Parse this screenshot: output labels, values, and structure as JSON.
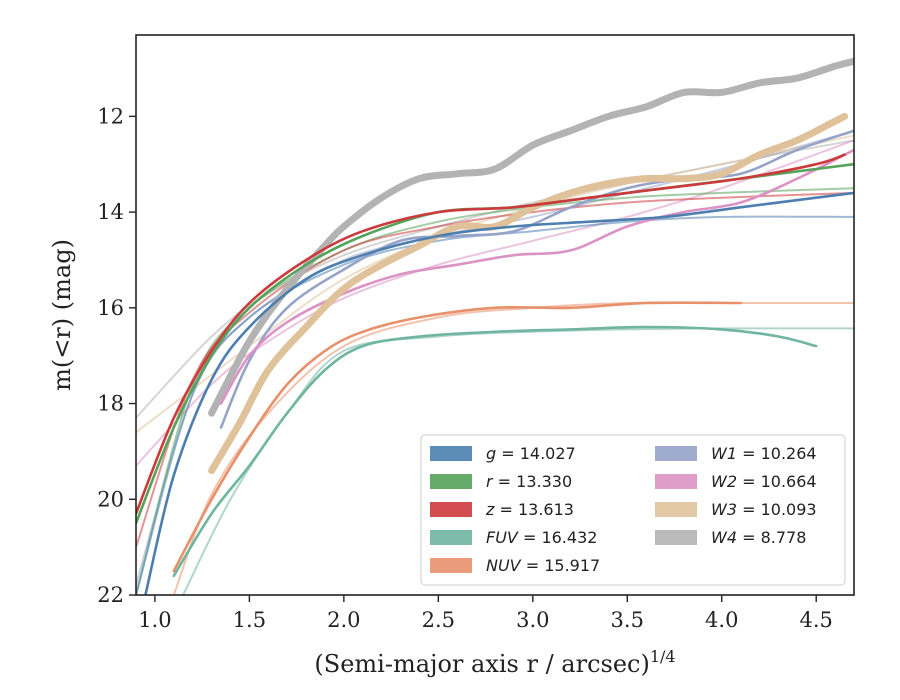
{
  "chart_data": {
    "type": "line",
    "xlabel": "(Semi-major axis r / arcsec)",
    "xlabel_exponent": "1/4",
    "ylabel": "m(<r) (mag)",
    "xlim": [
      0.9,
      4.7
    ],
    "ylim": [
      22,
      10.3
    ],
    "y_inverted": true,
    "grid": false,
    "legend_placement": "lower-right",
    "x_ticks": [
      "1.0",
      "1.5",
      "2.0",
      "2.5",
      "3.0",
      "3.5",
      "4.0",
      "4.5"
    ],
    "y_ticks": [
      "12",
      "14",
      "16",
      "18",
      "20",
      "22"
    ],
    "legend": [
      {
        "band": "g",
        "text": "= 14.027",
        "color": "#4c7fb0"
      },
      {
        "band": "r",
        "text": "= 13.330",
        "color": "#55a25a"
      },
      {
        "band": "z",
        "text": "= 13.613",
        "color": "#cc3a3c"
      },
      {
        "band": "FUV",
        "text": "= 16.432",
        "color": "#6fb5a0"
      },
      {
        "band": "NUV",
        "text": "= 15.917",
        "color": "#e8906a"
      },
      {
        "band": "W1",
        "text": "= 10.264",
        "color": "#95a3c9"
      },
      {
        "band": "W2",
        "text": "= 10.664",
        "color": "#dc92c4"
      },
      {
        "band": "W3",
        "text": "= 10.093",
        "color": "#dfc29a"
      },
      {
        "band": "W4",
        "text": "= 8.778",
        "color": "#b3b3b3"
      }
    ],
    "series": [
      {
        "name": "W4",
        "color": "#b3b3b3",
        "model": [
          [
            0.9,
            18.3
          ],
          [
            1.3,
            16.6
          ],
          [
            1.6,
            15.7
          ],
          [
            2.0,
            14.9
          ],
          [
            2.5,
            14.3
          ],
          [
            3.0,
            13.8
          ],
          [
            3.5,
            13.4
          ],
          [
            4.0,
            13.0
          ],
          [
            4.7,
            12.5
          ]
        ],
        "data": [
          [
            1.3,
            18.2
          ],
          [
            1.5,
            16.7
          ],
          [
            1.7,
            15.6
          ],
          [
            1.9,
            14.7
          ],
          [
            2.0,
            14.3
          ],
          [
            2.2,
            13.7
          ],
          [
            2.4,
            13.3
          ],
          [
            2.6,
            13.2
          ],
          [
            2.8,
            13.1
          ],
          [
            3.0,
            12.6
          ],
          [
            3.2,
            12.3
          ],
          [
            3.4,
            12.0
          ],
          [
            3.6,
            11.8
          ],
          [
            3.8,
            11.5
          ],
          [
            4.0,
            11.5
          ],
          [
            4.2,
            11.3
          ],
          [
            4.4,
            11.2
          ],
          [
            4.6,
            10.95
          ],
          [
            4.7,
            10.85
          ]
        ]
      },
      {
        "name": "W1",
        "color": "#95a3c9",
        "model": [
          [
            0.9,
            21.8
          ],
          [
            1.2,
            17.8
          ],
          [
            1.5,
            16.2
          ],
          [
            2.0,
            15.0
          ],
          [
            2.5,
            14.5
          ],
          [
            3.0,
            14.1
          ],
          [
            3.5,
            13.6
          ],
          [
            4.0,
            13.1
          ],
          [
            4.7,
            12.3
          ]
        ],
        "data": [
          [
            1.35,
            18.5
          ],
          [
            1.5,
            17.1
          ],
          [
            1.7,
            16.0
          ],
          [
            2.0,
            15.2
          ],
          [
            2.3,
            14.6
          ],
          [
            2.6,
            14.5
          ],
          [
            2.9,
            14.4
          ],
          [
            3.2,
            13.9
          ],
          [
            3.5,
            13.5
          ],
          [
            3.8,
            13.3
          ],
          [
            4.1,
            13.2
          ],
          [
            4.4,
            12.7
          ],
          [
            4.7,
            12.3
          ]
        ]
      },
      {
        "name": "W2",
        "color": "#dc92c4",
        "model": [
          [
            0.9,
            19.3
          ],
          [
            1.3,
            17.6
          ],
          [
            1.6,
            16.7
          ],
          [
            2.0,
            15.8
          ],
          [
            2.5,
            15.1
          ],
          [
            3.0,
            14.6
          ],
          [
            3.5,
            14.1
          ],
          [
            4.0,
            13.5
          ],
          [
            4.7,
            12.5
          ]
        ],
        "data": [
          [
            1.35,
            18.0
          ],
          [
            1.5,
            17.0
          ],
          [
            1.7,
            16.3
          ],
          [
            2.0,
            15.7
          ],
          [
            2.3,
            15.3
          ],
          [
            2.6,
            15.1
          ],
          [
            2.9,
            14.9
          ],
          [
            3.2,
            14.8
          ],
          [
            3.5,
            14.3
          ],
          [
            3.8,
            14.0
          ],
          [
            4.1,
            13.8
          ],
          [
            4.4,
            13.3
          ],
          [
            4.7,
            12.7
          ]
        ]
      },
      {
        "name": "W3",
        "color": "#dfc29a",
        "model": [
          [
            0.9,
            18.6
          ],
          [
            1.3,
            17.4
          ],
          [
            1.6,
            16.5
          ],
          [
            2.0,
            15.4
          ],
          [
            2.5,
            14.5
          ],
          [
            3.0,
            13.9
          ],
          [
            3.5,
            13.4
          ],
          [
            4.0,
            13.0
          ],
          [
            4.7,
            12.4
          ]
        ],
        "data": [
          [
            1.3,
            19.4
          ],
          [
            1.45,
            18.4
          ],
          [
            1.6,
            17.3
          ],
          [
            1.8,
            16.4
          ],
          [
            2.0,
            15.6
          ],
          [
            2.2,
            15.1
          ],
          [
            2.4,
            14.7
          ],
          [
            2.6,
            14.3
          ],
          [
            2.8,
            14.3
          ],
          [
            3.0,
            13.9
          ],
          [
            3.2,
            13.6
          ],
          [
            3.4,
            13.4
          ],
          [
            3.6,
            13.3
          ],
          [
            3.8,
            13.3
          ],
          [
            4.0,
            13.2
          ],
          [
            4.2,
            12.8
          ],
          [
            4.4,
            12.5
          ],
          [
            4.6,
            12.1
          ],
          [
            4.65,
            12.0
          ]
        ]
      },
      {
        "name": "r",
        "color": "#55a25a",
        "model": [
          [
            0.9,
            22.0
          ],
          [
            1.2,
            17.6
          ],
          [
            1.5,
            16.0
          ],
          [
            2.0,
            14.8
          ],
          [
            2.5,
            14.2
          ],
          [
            3.0,
            13.9
          ],
          [
            3.5,
            13.7
          ],
          [
            4.0,
            13.6
          ],
          [
            4.7,
            13.5
          ]
        ],
        "data": [
          [
            0.9,
            20.5
          ],
          [
            1.1,
            18.5
          ],
          [
            1.3,
            17.0
          ],
          [
            1.5,
            16.0
          ],
          [
            1.8,
            15.1
          ],
          [
            2.1,
            14.5
          ],
          [
            2.5,
            14.0
          ],
          [
            2.9,
            13.9
          ],
          [
            3.3,
            13.7
          ],
          [
            3.7,
            13.5
          ],
          [
            4.1,
            13.3
          ],
          [
            4.5,
            13.1
          ],
          [
            4.7,
            13.0
          ]
        ]
      },
      {
        "name": "z",
        "color": "#cc3a3c",
        "model": [
          [
            0.9,
            21.0
          ],
          [
            1.2,
            17.5
          ],
          [
            1.5,
            16.1
          ],
          [
            2.0,
            14.8
          ],
          [
            2.5,
            14.3
          ],
          [
            3.0,
            14.0
          ],
          [
            3.5,
            13.8
          ],
          [
            4.0,
            13.7
          ],
          [
            4.7,
            13.6
          ]
        ],
        "data": [
          [
            0.9,
            20.3
          ],
          [
            1.1,
            18.3
          ],
          [
            1.3,
            16.9
          ],
          [
            1.5,
            15.9
          ],
          [
            1.8,
            15.0
          ],
          [
            2.1,
            14.4
          ],
          [
            2.5,
            14.0
          ],
          [
            2.9,
            13.9
          ],
          [
            3.3,
            13.7
          ],
          [
            3.7,
            13.5
          ],
          [
            4.1,
            13.3
          ],
          [
            4.5,
            13.0
          ],
          [
            4.65,
            12.8
          ]
        ]
      },
      {
        "name": "g",
        "color": "#4c7fb0",
        "model": [
          [
            0.9,
            22.0
          ],
          [
            1.2,
            17.8
          ],
          [
            1.5,
            16.2
          ],
          [
            2.0,
            15.1
          ],
          [
            2.5,
            14.6
          ],
          [
            3.0,
            14.4
          ],
          [
            3.5,
            14.2
          ],
          [
            4.0,
            14.1
          ],
          [
            4.7,
            14.1
          ]
        ],
        "data": [
          [
            0.95,
            22.0
          ],
          [
            1.1,
            19.5
          ],
          [
            1.3,
            17.5
          ],
          [
            1.5,
            16.4
          ],
          [
            1.8,
            15.4
          ],
          [
            2.1,
            14.9
          ],
          [
            2.5,
            14.5
          ],
          [
            2.9,
            14.3
          ],
          [
            3.3,
            14.2
          ],
          [
            3.7,
            14.1
          ],
          [
            4.1,
            13.9
          ],
          [
            4.5,
            13.7
          ],
          [
            4.7,
            13.6
          ]
        ]
      },
      {
        "name": "NUV",
        "color": "#e8906a",
        "model": [
          [
            1.1,
            22.0
          ],
          [
            1.3,
            19.9
          ],
          [
            1.6,
            18.2
          ],
          [
            2.0,
            16.8
          ],
          [
            2.5,
            16.2
          ],
          [
            3.0,
            16.0
          ],
          [
            3.5,
            15.9
          ],
          [
            4.0,
            15.9
          ],
          [
            4.7,
            15.9
          ]
        ],
        "data": [
          [
            1.1,
            21.5
          ],
          [
            1.3,
            20.0
          ],
          [
            1.5,
            18.7
          ],
          [
            1.7,
            17.6
          ],
          [
            1.9,
            16.9
          ],
          [
            2.1,
            16.5
          ],
          [
            2.4,
            16.2
          ],
          [
            2.8,
            16.0
          ],
          [
            3.2,
            16.0
          ],
          [
            3.6,
            15.9
          ],
          [
            4.1,
            15.9
          ]
        ]
      },
      {
        "name": "FUV",
        "color": "#6fb5a0",
        "model": [
          [
            1.15,
            22.0
          ],
          [
            1.4,
            20.0
          ],
          [
            1.7,
            18.2
          ],
          [
            2.0,
            16.9
          ],
          [
            2.5,
            16.6
          ],
          [
            3.0,
            16.5
          ],
          [
            3.5,
            16.45
          ],
          [
            4.0,
            16.43
          ],
          [
            4.7,
            16.43
          ]
        ],
        "data": [
          [
            1.1,
            21.6
          ],
          [
            1.3,
            20.3
          ],
          [
            1.5,
            19.3
          ],
          [
            1.7,
            18.2
          ],
          [
            1.9,
            17.3
          ],
          [
            2.1,
            16.8
          ],
          [
            2.4,
            16.6
          ],
          [
            2.8,
            16.5
          ],
          [
            3.2,
            16.45
          ],
          [
            3.6,
            16.4
          ],
          [
            4.0,
            16.45
          ],
          [
            4.3,
            16.6
          ],
          [
            4.5,
            16.8
          ]
        ]
      }
    ]
  }
}
